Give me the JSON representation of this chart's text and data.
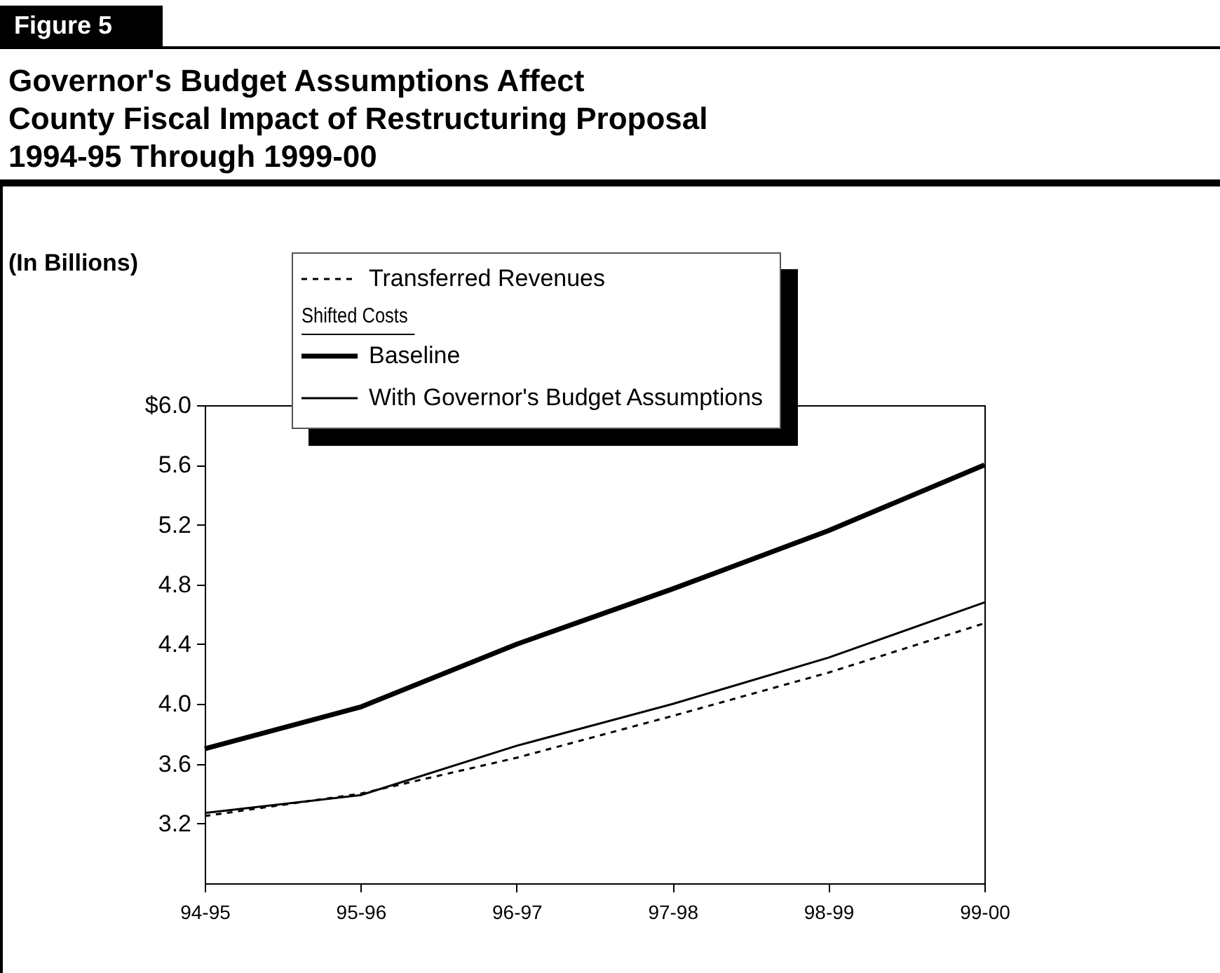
{
  "chart_data": {
    "type": "line",
    "title": "Governor's Budget Assumptions Affect\nCounty Fiscal Impact of Restructuring Proposal\n1994-95 Through 1999-00",
    "ylabel": "(In Billions)",
    "legend_title": "Shifted Costs",
    "annotations": [
      "Figure 5"
    ],
    "categories": [
      "94-95",
      "95-96",
      "96-97",
      "97-98",
      "98-99",
      "99-00"
    ],
    "series": [
      {
        "name": "Transferred Revenues",
        "color": "#000000",
        "line_style": "dashed",
        "values": [
          3.25,
          3.4,
          3.64,
          3.92,
          4.21,
          4.54
        ]
      },
      {
        "name": "Baseline",
        "color": "#000000",
        "line_style": "solid",
        "values": [
          3.7,
          3.98,
          4.4,
          4.77,
          5.16,
          5.6
        ]
      },
      {
        "name": "With Governor's Budget Assumptions",
        "color": "#000000",
        "line_style": "solid",
        "values": [
          3.27,
          3.39,
          3.72,
          4.0,
          4.31,
          4.68
        ]
      }
    ],
    "ylim": [
      2.8,
      6.0
    ],
    "yticks": [
      {
        "value": 3.2,
        "label": "3.2"
      },
      {
        "value": 3.6,
        "label": "3.6"
      },
      {
        "value": 4.0,
        "label": "4.0"
      },
      {
        "value": 4.4,
        "label": "4.4"
      },
      {
        "value": 4.8,
        "label": "4.8"
      },
      {
        "value": 5.2,
        "label": "5.2"
      },
      {
        "value": 5.6,
        "label": "5.6"
      },
      {
        "value": 6.0,
        "label": "$6.0"
      }
    ],
    "grid": false,
    "legend": "top",
    "marker": "none"
  }
}
